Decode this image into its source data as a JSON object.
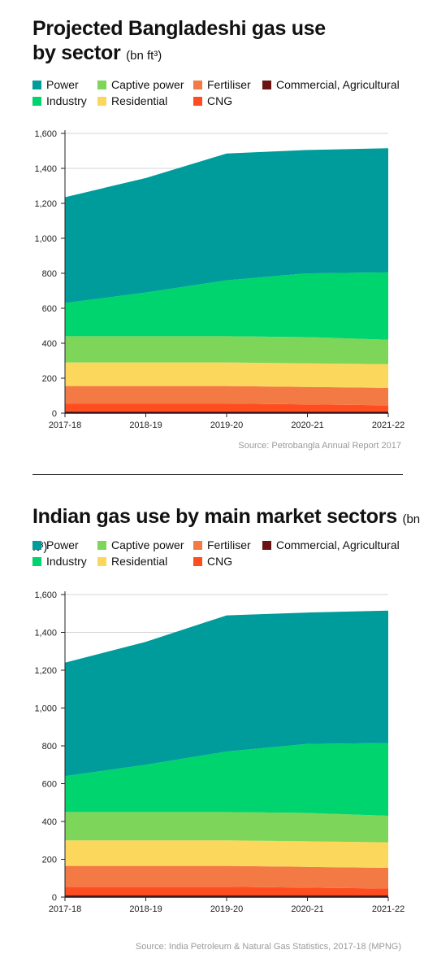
{
  "charts": [
    {
      "title_main": "Projected Bangladeshi gas use",
      "title_line2": "by sector",
      "title_unit": "(bn ft³)",
      "source": "Source: Petrobangla Annual Report 2017"
    },
    {
      "title_main": "Indian gas use by main market sectors",
      "title_unit": "(bn ft³)",
      "source": "Source: India Petroleum & Natural Gas Statistics, 2017-18 (MPNG)"
    }
  ],
  "legend": [
    {
      "name": "Power",
      "color": "#009b9b"
    },
    {
      "name": "Captive power",
      "color": "#7dd65a"
    },
    {
      "name": "Fertiliser",
      "color": "#f47a45"
    },
    {
      "name": "Commercial, Agricultural",
      "color": "#6b1212"
    },
    {
      "name": "Industry",
      "color": "#00d46e"
    },
    {
      "name": "Residential",
      "color": "#fbd85c"
    },
    {
      "name": "CNG",
      "color": "#ff4d1f"
    }
  ],
  "chart_data": [
    {
      "type": "area",
      "stacked": true,
      "title": "Projected Bangladeshi gas use by sector (bn ft³)",
      "categories": [
        "2017-18",
        "2018-19",
        "2019-20",
        "2020-21",
        "2021-22"
      ],
      "ylim": [
        0,
        1600
      ],
      "yticks": [
        "0",
        "200",
        "400",
        "600",
        "800",
        "1,000",
        "1,200",
        "1,400",
        "1,600"
      ],
      "ytick_values": [
        0,
        200,
        400,
        600,
        800,
        1000,
        1200,
        1400,
        1600
      ],
      "grid": true,
      "legend_position": "top",
      "series": [
        {
          "name": "Commercial, Agricultural",
          "color": "#6b1212",
          "values": [
            10,
            10,
            10,
            10,
            10
          ]
        },
        {
          "name": "CNG",
          "color": "#ff4d1f",
          "values": [
            45,
            45,
            45,
            40,
            35
          ]
        },
        {
          "name": "Fertiliser",
          "color": "#f47a45",
          "values": [
            100,
            100,
            100,
            100,
            100
          ]
        },
        {
          "name": "Residential",
          "color": "#fbd85c",
          "values": [
            135,
            135,
            135,
            135,
            135
          ]
        },
        {
          "name": "Captive power",
          "color": "#7dd65a",
          "values": [
            150,
            150,
            150,
            150,
            140
          ]
        },
        {
          "name": "Industry",
          "color": "#00d46e",
          "values": [
            190,
            250,
            320,
            365,
            385
          ]
        },
        {
          "name": "Power",
          "color": "#009b9b",
          "values": [
            605,
            655,
            725,
            705,
            710
          ]
        }
      ]
    },
    {
      "type": "area",
      "stacked": true,
      "title": "Indian gas use by main market sectors (bn ft³)",
      "categories": [
        "2017-18",
        "2018-19",
        "2019-20",
        "2020-21",
        "2021-22"
      ],
      "ylim": [
        0,
        1600
      ],
      "yticks": [
        "0",
        "200",
        "400",
        "600",
        "800",
        "1,000",
        "1,200",
        "1,400",
        "1,600"
      ],
      "ytick_values": [
        0,
        200,
        400,
        600,
        800,
        1000,
        1200,
        1400,
        1600
      ],
      "grid": true,
      "legend_position": "top",
      "series": [
        {
          "name": "Commercial, Agricultural",
          "color": "#6b1212",
          "values": [
            10,
            10,
            10,
            10,
            10
          ]
        },
        {
          "name": "CNG",
          "color": "#ff4d1f",
          "values": [
            45,
            45,
            45,
            40,
            35
          ]
        },
        {
          "name": "Fertiliser",
          "color": "#f47a45",
          "values": [
            110,
            110,
            110,
            110,
            110
          ]
        },
        {
          "name": "Residential",
          "color": "#fbd85c",
          "values": [
            135,
            135,
            135,
            135,
            135
          ]
        },
        {
          "name": "Captive power",
          "color": "#7dd65a",
          "values": [
            150,
            150,
            150,
            150,
            140
          ]
        },
        {
          "name": "Industry",
          "color": "#00d46e",
          "values": [
            190,
            250,
            320,
            365,
            385
          ]
        },
        {
          "name": "Power",
          "color": "#009b9b",
          "values": [
            600,
            650,
            720,
            695,
            700
          ]
        }
      ]
    }
  ]
}
